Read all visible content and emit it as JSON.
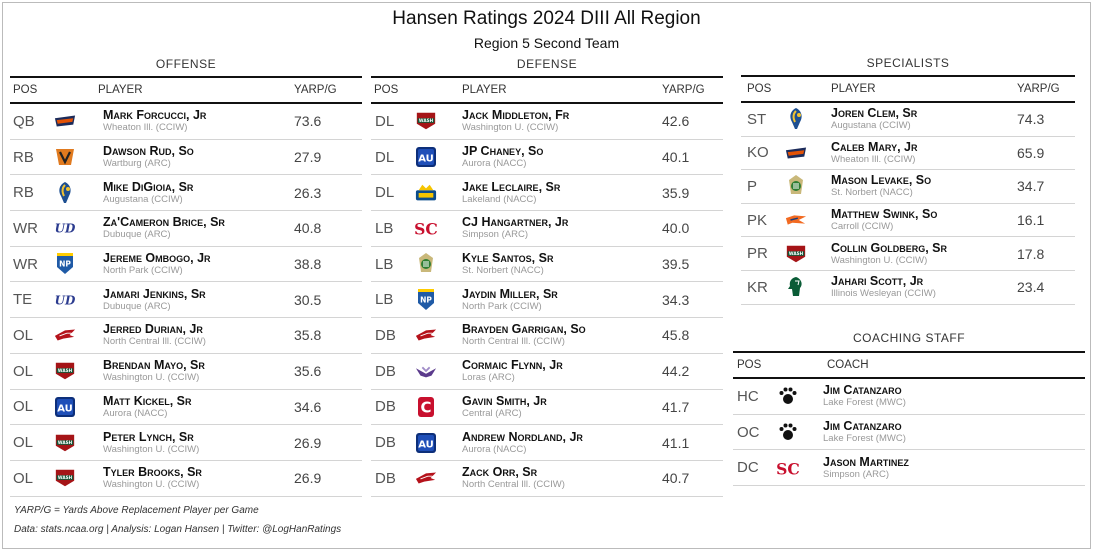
{
  "title": "Hansen Ratings 2024 DIII All Region",
  "subtitle": "Region 5 Second Team",
  "offense": {
    "title": "OFFENSE",
    "headers": {
      "pos": "POS",
      "player": "PLAYER",
      "stat": "YARP/G"
    },
    "rows": [
      {
        "pos": "QB",
        "name": "Mark Forcucci, Jr",
        "school": "Wheaton Ill. (CCIW)",
        "value": "73.6",
        "logo": "wheaton-logo"
      },
      {
        "pos": "RB",
        "name": "Dawson Rud, So",
        "school": "Wartburg (ARC)",
        "value": "27.9",
        "logo": "wartburg-logo"
      },
      {
        "pos": "RB",
        "name": "Mike DiGioia, Sr",
        "school": "Augustana (CCIW)",
        "value": "26.3",
        "logo": "augustana-logo"
      },
      {
        "pos": "WR",
        "name": "Za'Cameron Brice, Sr",
        "school": "Dubuque (ARC)",
        "value": "40.8",
        "logo": "dubuque-logo"
      },
      {
        "pos": "WR",
        "name": "Jereme Ombogo, Jr",
        "school": "North Park (CCIW)",
        "value": "38.8",
        "logo": "northpark-logo"
      },
      {
        "pos": "TE",
        "name": "Jamari Jenkins, Sr",
        "school": "Dubuque (ARC)",
        "value": "30.5",
        "logo": "dubuque-logo"
      },
      {
        "pos": "OL",
        "name": "Jerred Durian, Jr",
        "school": "North Central Ill. (CCIW)",
        "value": "35.8",
        "logo": "northcentral-logo"
      },
      {
        "pos": "OL",
        "name": "Brendan Mayo, Sr",
        "school": "Washington U. (CCIW)",
        "value": "35.6",
        "logo": "washu-logo"
      },
      {
        "pos": "OL",
        "name": "Matt Kickel, Sr",
        "school": "Aurora (NACC)",
        "value": "34.6",
        "logo": "aurora-logo"
      },
      {
        "pos": "OL",
        "name": "Peter Lynch, Sr",
        "school": "Washington U. (CCIW)",
        "value": "26.9",
        "logo": "washu-logo"
      },
      {
        "pos": "OL",
        "name": "Tyler Brooks, Sr",
        "school": "Washington U. (CCIW)",
        "value": "26.9",
        "logo": "washu-logo"
      }
    ]
  },
  "defense": {
    "title": "DEFENSE",
    "headers": {
      "pos": "POS",
      "player": "PLAYER",
      "stat": "YARP/G"
    },
    "rows": [
      {
        "pos": "DL",
        "name": "Jack Middleton, Fr",
        "school": "Washington U. (CCIW)",
        "value": "42.6",
        "logo": "washu-logo"
      },
      {
        "pos": "DL",
        "name": "JP Chaney, So",
        "school": "Aurora (NACC)",
        "value": "40.1",
        "logo": "aurora-logo"
      },
      {
        "pos": "DL",
        "name": "Jake Leclaire, Sr",
        "school": "Lakeland (NACC)",
        "value": "35.9",
        "logo": "lakeland-logo"
      },
      {
        "pos": "LB",
        "name": "CJ Hangartner, Jr",
        "school": "Simpson (ARC)",
        "value": "40.0",
        "logo": "simpson-logo"
      },
      {
        "pos": "LB",
        "name": "Kyle Santos, Sr",
        "school": "St. Norbert (NACC)",
        "value": "39.5",
        "logo": "stnorbert-logo"
      },
      {
        "pos": "LB",
        "name": "Jaydin Miller, Sr",
        "school": "North Park (CCIW)",
        "value": "34.3",
        "logo": "northpark-logo"
      },
      {
        "pos": "DB",
        "name": "Brayden Garrigan, So",
        "school": "North Central Ill. (CCIW)",
        "value": "45.8",
        "logo": "northcentral-logo"
      },
      {
        "pos": "DB",
        "name": "Cormaic Flynn, Jr",
        "school": "Loras (ARC)",
        "value": "44.2",
        "logo": "loras-logo"
      },
      {
        "pos": "DB",
        "name": "Gavin Smith, Jr",
        "school": "Central (ARC)",
        "value": "41.7",
        "logo": "central-logo"
      },
      {
        "pos": "DB",
        "name": "Andrew Nordland, Jr",
        "school": "Aurora (NACC)",
        "value": "41.1",
        "logo": "aurora-logo"
      },
      {
        "pos": "DB",
        "name": "Zack Orr, Sr",
        "school": "North Central Ill. (CCIW)",
        "value": "40.7",
        "logo": "northcentral-logo"
      }
    ]
  },
  "specialists": {
    "title": "SPECIALISTS",
    "headers": {
      "pos": "POS",
      "player": "PLAYER",
      "stat": "YARP/G"
    },
    "rows": [
      {
        "pos": "ST",
        "name": "Joren Clem, Sr",
        "school": "Augustana (CCIW)",
        "value": "74.3",
        "logo": "augustana-logo"
      },
      {
        "pos": "KO",
        "name": "Caleb Mary, Jr",
        "school": "Wheaton Ill. (CCIW)",
        "value": "65.9",
        "logo": "wheaton-logo"
      },
      {
        "pos": "P",
        "name": "Mason Levake, So",
        "school": "St. Norbert (NACC)",
        "value": "34.7",
        "logo": "stnorbert-logo"
      },
      {
        "pos": "PK",
        "name": "Matthew Swink, So",
        "school": "Carroll (CCIW)",
        "value": "16.1",
        "logo": "carroll-logo"
      },
      {
        "pos": "PR",
        "name": "Collin Goldberg, Sr",
        "school": "Washington U. (CCIW)",
        "value": "17.8",
        "logo": "washu-logo"
      },
      {
        "pos": "KR",
        "name": "Jahari Scott, Jr",
        "school": "Illinois Wesleyan (CCIW)",
        "value": "23.4",
        "logo": "iwu-logo"
      }
    ]
  },
  "coaching": {
    "title": "COACHING STAFF",
    "headers": {
      "pos": "POS",
      "coach": "COACH"
    },
    "rows": [
      {
        "pos": "HC",
        "name": "Jim Catanzaro",
        "school": "Lake Forest (MWC)",
        "logo": "lakeforest-logo"
      },
      {
        "pos": "OC",
        "name": "Jim Catanzaro",
        "school": "Lake Forest (MWC)",
        "logo": "lakeforest-logo"
      },
      {
        "pos": "DC",
        "name": "Jason Martinez",
        "school": "Simpson (ARC)",
        "logo": "simpson-logo"
      }
    ]
  },
  "logo_text": {
    "wash": "WASH",
    "ud": "UD",
    "np": "NP",
    "sc": "SC",
    "au": "AU",
    "c": "C"
  },
  "footnote_1": "YARP/G = Yards Above Replacement Player per Game",
  "footnote_2": "Data: stats.ncaa.org | Analysis: Logan Hansen | Twitter: @LogHanRatings",
  "colors": {
    "washu_red": "#a51417",
    "washu_green": "#0f5a3a",
    "aurora_blue": "#1f4fb8",
    "simpson_red": "#c8102e",
    "northcentral_red": "#b5121b",
    "dubuque_blue": "#2b3b8f",
    "wartburg_orange": "#e07a1f",
    "augustana_blue": "#1d4f91",
    "augustana_gold": "#f2c230",
    "northpark_blue": "#1f5aa6",
    "stnorbert_green": "#2e7d32",
    "lakeland_blue": "#0b4c8c",
    "lakeland_gold": "#f5c400",
    "loras_purple": "#5b3b8c",
    "central_red": "#c8102e",
    "iwu_green": "#0a5c36",
    "wheaton_orange": "#e35205",
    "wheaton_navy": "#1c2b5a"
  }
}
